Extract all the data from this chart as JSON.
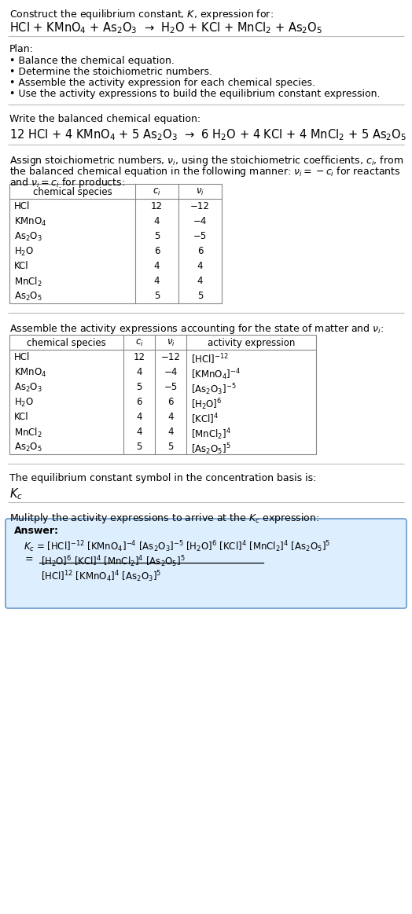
{
  "title_line1": "Construct the equilibrium constant, $K$, expression for:",
  "title_line2": "HCl + KMnO$_4$ + As$_2$O$_3$  →  H$_2$O + KCl + MnCl$_2$ + As$_2$O$_5$",
  "plan_header": "Plan:",
  "plan_items": [
    "• Balance the chemical equation.",
    "• Determine the stoichiometric numbers.",
    "• Assemble the activity expression for each chemical species.",
    "• Use the activity expressions to build the equilibrium constant expression."
  ],
  "balanced_header": "Write the balanced chemical equation:",
  "balanced_eq": "12 HCl + 4 KMnO$_4$ + 5 As$_2$O$_3$  →  6 H$_2$O + 4 KCl + 4 MnCl$_2$ + 5 As$_2$O$_5$",
  "stoich_intro1": "Assign stoichiometric numbers, $\\nu_i$, using the stoichiometric coefficients, $c_i$, from",
  "stoich_intro2": "the balanced chemical equation in the following manner: $\\nu_i = -c_i$ for reactants",
  "stoich_intro3": "and $\\nu_i = c_i$ for products:",
  "table1_headers": [
    "chemical species",
    "$c_i$",
    "$\\nu_i$"
  ],
  "table1_data": [
    [
      "HCl",
      "12",
      "−12"
    ],
    [
      "KMnO$_4$",
      "4",
      "−4"
    ],
    [
      "As$_2$O$_3$",
      "5",
      "−5"
    ],
    [
      "H$_2$O",
      "6",
      "6"
    ],
    [
      "KCl",
      "4",
      "4"
    ],
    [
      "MnCl$_2$",
      "4",
      "4"
    ],
    [
      "As$_2$O$_5$",
      "5",
      "5"
    ]
  ],
  "activity_intro": "Assemble the activity expressions accounting for the state of matter and $\\nu_i$:",
  "table2_headers": [
    "chemical species",
    "$c_i$",
    "$\\nu_i$",
    "activity expression"
  ],
  "table2_data": [
    [
      "HCl",
      "12",
      "−12",
      "[HCl]$^{-12}$"
    ],
    [
      "KMnO$_4$",
      "4",
      "−4",
      "[KMnO$_4$]$^{-4}$"
    ],
    [
      "As$_2$O$_3$",
      "5",
      "−5",
      "[As$_2$O$_3$]$^{-5}$"
    ],
    [
      "H$_2$O",
      "6",
      "6",
      "[H$_2$O]$^{6}$"
    ],
    [
      "KCl",
      "4",
      "4",
      "[KCl]$^{4}$"
    ],
    [
      "MnCl$_2$",
      "4",
      "4",
      "[MnCl$_2$]$^{4}$"
    ],
    [
      "As$_2$O$_5$",
      "5",
      "5",
      "[As$_2$O$_5$]$^{5}$"
    ]
  ],
  "kc_symbol_intro": "The equilibrium constant symbol in the concentration basis is:",
  "kc_symbol": "$K_c$",
  "multiply_intro": "Mulitply the activity expressions to arrive at the $K_c$ expression:",
  "answer_label": "Answer:",
  "answer_line1": "$K_c$ = [HCl]$^{-12}$ [KMnO$_4$]$^{-4}$ [As$_2$O$_3$]$^{-5}$ [H$_2$O]$^{6}$ [KCl]$^{4}$ [MnCl$_2$]$^{4}$ [As$_2$O$_5$]$^{5}$",
  "answer_eq_num": "[H$_2$O]$^6$ [KCl]$^4$ [MnCl$_2$]$^4$ [As$_2$O$_5$]$^5$",
  "answer_eq_den": "[HCl]$^{12}$ [KMnO$_4$]$^4$ [As$_2$O$_3$]$^5$",
  "bg_color": "#ffffff",
  "text_color": "#000000",
  "table_border_color": "#888888",
  "answer_box_color": "#ddeeff",
  "answer_box_border": "#6699cc"
}
